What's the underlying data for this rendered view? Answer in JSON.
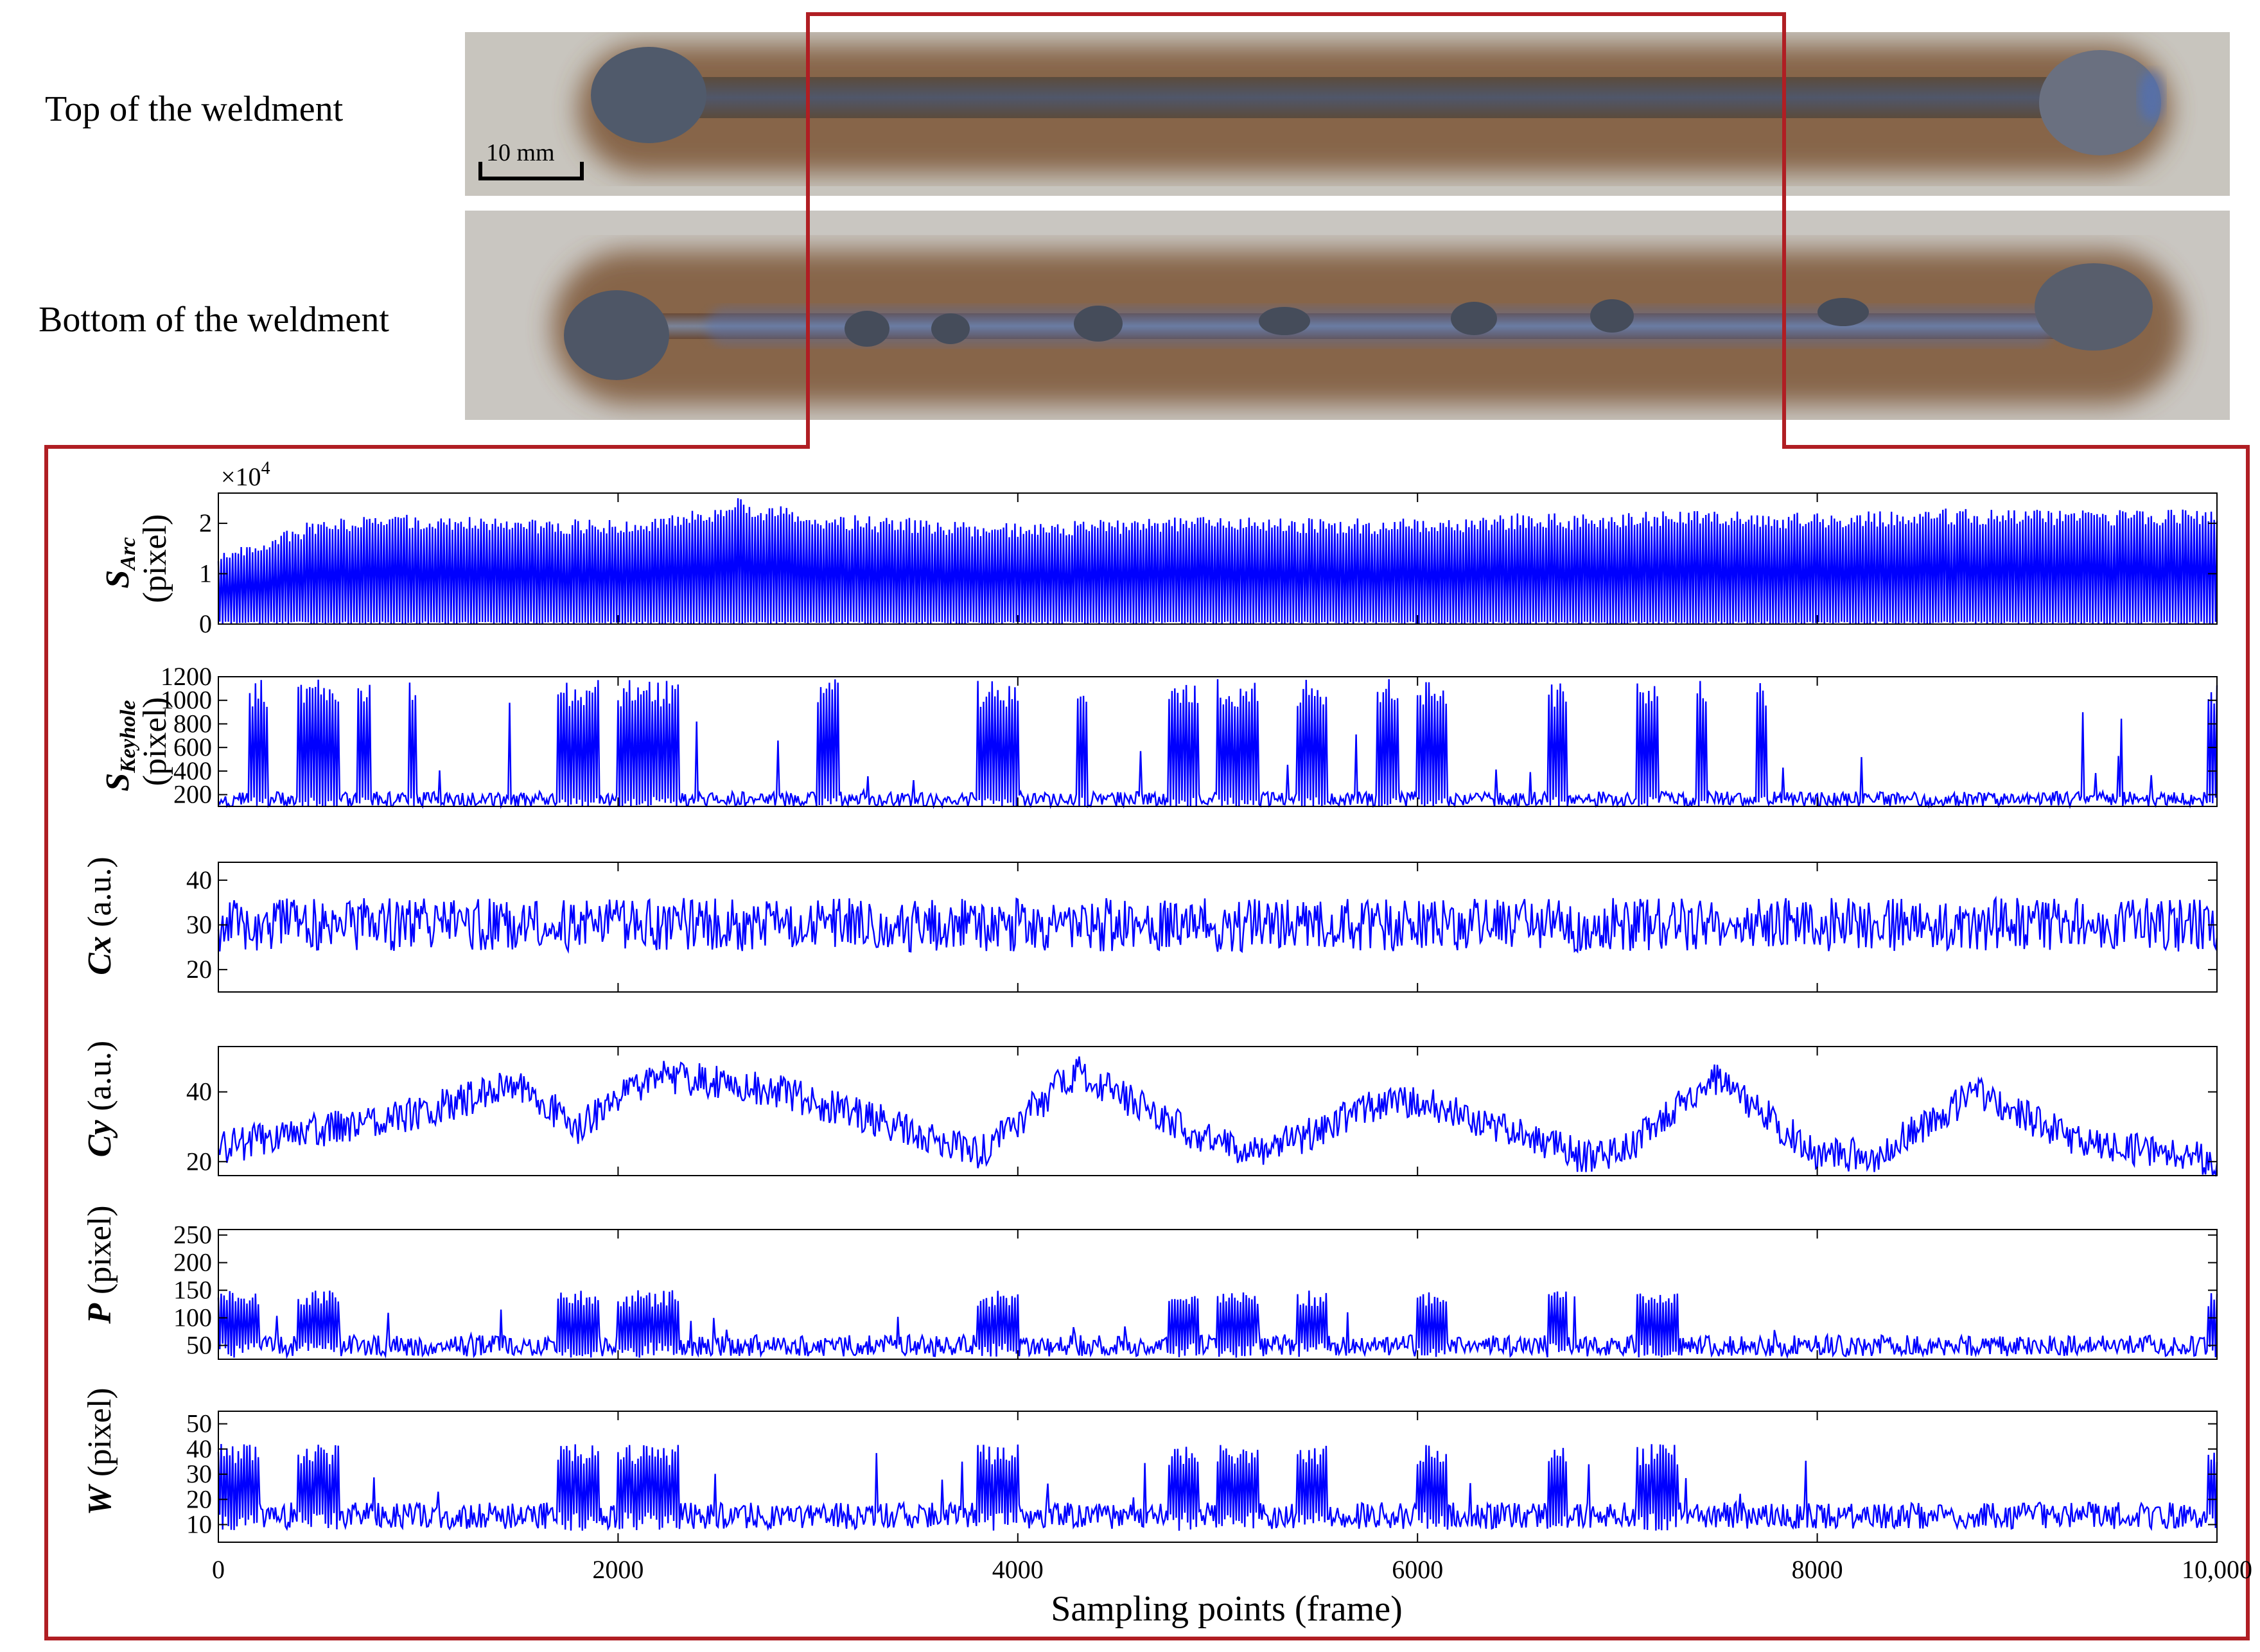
{
  "photos": {
    "top_label": "Top of the weldment",
    "bottom_label": "Bottom of the weldment",
    "scale_bar": "10 mm",
    "colors": {
      "plate": "#c9c6c0",
      "heat_tint_outer": "#8a5a32",
      "heat_tint_inner": "#3d2a1e",
      "bead_top": "#4a4f5c",
      "bead_bottom": "#5c6070",
      "temper_blue": "#4f6fb8"
    }
  },
  "highlight_color": "#b01e23",
  "chart_data": [
    {
      "type": "line",
      "name": "S_Arc",
      "ylabel": {
        "symbol": "S",
        "sub": "Arc",
        "unit": "(pixel)"
      },
      "multiplier": "×10",
      "multiplier_exp": "4",
      "ylim": [
        0,
        2.6
      ],
      "yticks": [
        0,
        1,
        2
      ],
      "ytick_labels": [
        "0",
        "1",
        "2"
      ],
      "x_range": [
        0,
        10000
      ],
      "profile": {
        "style": "spiky",
        "envelope_x": [
          0,
          500,
          1000,
          1500,
          2200,
          2600,
          3000,
          3500,
          4000,
          4500,
          5000,
          5500,
          6000,
          6500,
          7000,
          7500,
          8000,
          8500,
          9000,
          9500,
          10000
        ],
        "envelope_y": [
          1.4,
          2.1,
          2.2,
          2.1,
          2.1,
          2.5,
          2.2,
          2.1,
          2.0,
          2.1,
          2.2,
          2.1,
          2.1,
          2.2,
          2.2,
          2.3,
          2.2,
          2.3,
          2.3,
          2.3,
          2.3
        ],
        "baseline": 0.05,
        "color": "#0000ff"
      }
    },
    {
      "type": "line",
      "name": "S_Keyhole",
      "ylabel": {
        "symbol": "S",
        "sub": "Keyhole",
        "unit": "(pixel)"
      },
      "ylim": [
        100,
        1200
      ],
      "yticks": [
        200,
        400,
        600,
        800,
        1000,
        1200
      ],
      "ytick_labels": [
        "200",
        "400",
        "600",
        "800",
        "1000",
        "1200"
      ],
      "x_range": [
        0,
        10000
      ],
      "profile": {
        "style": "bursts",
        "base_level": 180,
        "burst_level": 1180,
        "bursts": [
          [
            150,
            250
          ],
          [
            400,
            600
          ],
          [
            700,
            760
          ],
          [
            950,
            990
          ],
          [
            1450,
            1470
          ],
          [
            1700,
            1900
          ],
          [
            2000,
            2300
          ],
          [
            3000,
            3100
          ],
          [
            3800,
            4000
          ],
          [
            4300,
            4350
          ],
          [
            4750,
            4900
          ],
          [
            5000,
            5200
          ],
          [
            5400,
            5550
          ],
          [
            5800,
            5900
          ],
          [
            6000,
            6150
          ],
          [
            6650,
            6750
          ],
          [
            7100,
            7200
          ],
          [
            7400,
            7450
          ],
          [
            7700,
            7750
          ],
          [
            9950,
            10000
          ]
        ],
        "color": "#0000ff"
      }
    },
    {
      "type": "line",
      "name": "Cx",
      "ylabel": {
        "symbol": "Cx",
        "sub": "",
        "unit": "(a.u.)"
      },
      "ylim": [
        15,
        44
      ],
      "yticks": [
        20,
        30,
        40
      ],
      "ytick_labels": [
        "20",
        "30",
        "40"
      ],
      "x_range": [
        0,
        10000
      ],
      "profile": {
        "style": "noise",
        "mean_x": [
          0,
          10000
        ],
        "mean_y": [
          30,
          30
        ],
        "spread": 6,
        "color": "#0000ff"
      }
    },
    {
      "type": "line",
      "name": "Cy",
      "ylabel": {
        "symbol": "Cy",
        "sub": "",
        "unit": "(a.u.)"
      },
      "ylim": [
        16,
        53
      ],
      "yticks": [
        20,
        40
      ],
      "ytick_labels": [
        "20",
        "40"
      ],
      "x_range": [
        0,
        10000
      ],
      "profile": {
        "style": "noise",
        "mean_x": [
          0,
          1000,
          1500,
          1800,
          2200,
          2800,
          3300,
          3800,
          4300,
          4800,
          5200,
          5800,
          6000,
          6800,
          7000,
          7500,
          8000,
          8300,
          8800,
          9300,
          10000
        ],
        "mean_y": [
          24,
          34,
          42,
          30,
          45,
          40,
          32,
          22,
          46,
          30,
          22,
          36,
          38,
          22,
          22,
          44,
          22,
          22,
          40,
          26,
          20
        ],
        "spread": 5,
        "color": "#0000ff"
      }
    },
    {
      "type": "line",
      "name": "P",
      "ylabel": {
        "symbol": "P",
        "sub": "",
        "unit": "(pixel)"
      },
      "ylim": [
        25,
        260
      ],
      "yticks": [
        50,
        100,
        150,
        200,
        250
      ],
      "ytick_labels": [
        "50",
        "100",
        "150",
        "200",
        "250"
      ],
      "x_range": [
        0,
        10000
      ],
      "profile": {
        "style": "bursts",
        "base_level": 55,
        "burst_level": 150,
        "bursts": [
          [
            0,
            200
          ],
          [
            400,
            600
          ],
          [
            1700,
            1900
          ],
          [
            2000,
            2300
          ],
          [
            3800,
            4000
          ],
          [
            4750,
            4900
          ],
          [
            5000,
            5200
          ],
          [
            5400,
            5550
          ],
          [
            6000,
            6150
          ],
          [
            6650,
            6750
          ],
          [
            7100,
            7300
          ],
          [
            9950,
            10000
          ]
        ],
        "color": "#0000ff"
      }
    },
    {
      "type": "line",
      "name": "W",
      "ylabel": {
        "symbol": "W",
        "sub": "",
        "unit": "(pixel)"
      },
      "ylim": [
        3,
        55
      ],
      "yticks": [
        10,
        20,
        30,
        40,
        50
      ],
      "ytick_labels": [
        "10",
        "20",
        "30",
        "40",
        "50"
      ],
      "x_range": [
        0,
        10000
      ],
      "profile": {
        "style": "bursts",
        "base_level": 15,
        "burst_level": 42,
        "bursts": [
          [
            0,
            200
          ],
          [
            400,
            600
          ],
          [
            1700,
            1900
          ],
          [
            2000,
            2300
          ],
          [
            3800,
            4000
          ],
          [
            4750,
            4900
          ],
          [
            5000,
            5200
          ],
          [
            5400,
            5550
          ],
          [
            6000,
            6150
          ],
          [
            6650,
            6750
          ],
          [
            7100,
            7300
          ],
          [
            9950,
            10000
          ]
        ],
        "color": "#0000ff"
      }
    }
  ],
  "x_axis": {
    "label": "Sampling points (frame)",
    "ticks": [
      0,
      2000,
      4000,
      6000,
      8000,
      10000
    ],
    "tick_labels": [
      "0",
      "2000",
      "4000",
      "6000",
      "8000",
      "10,000"
    ]
  }
}
